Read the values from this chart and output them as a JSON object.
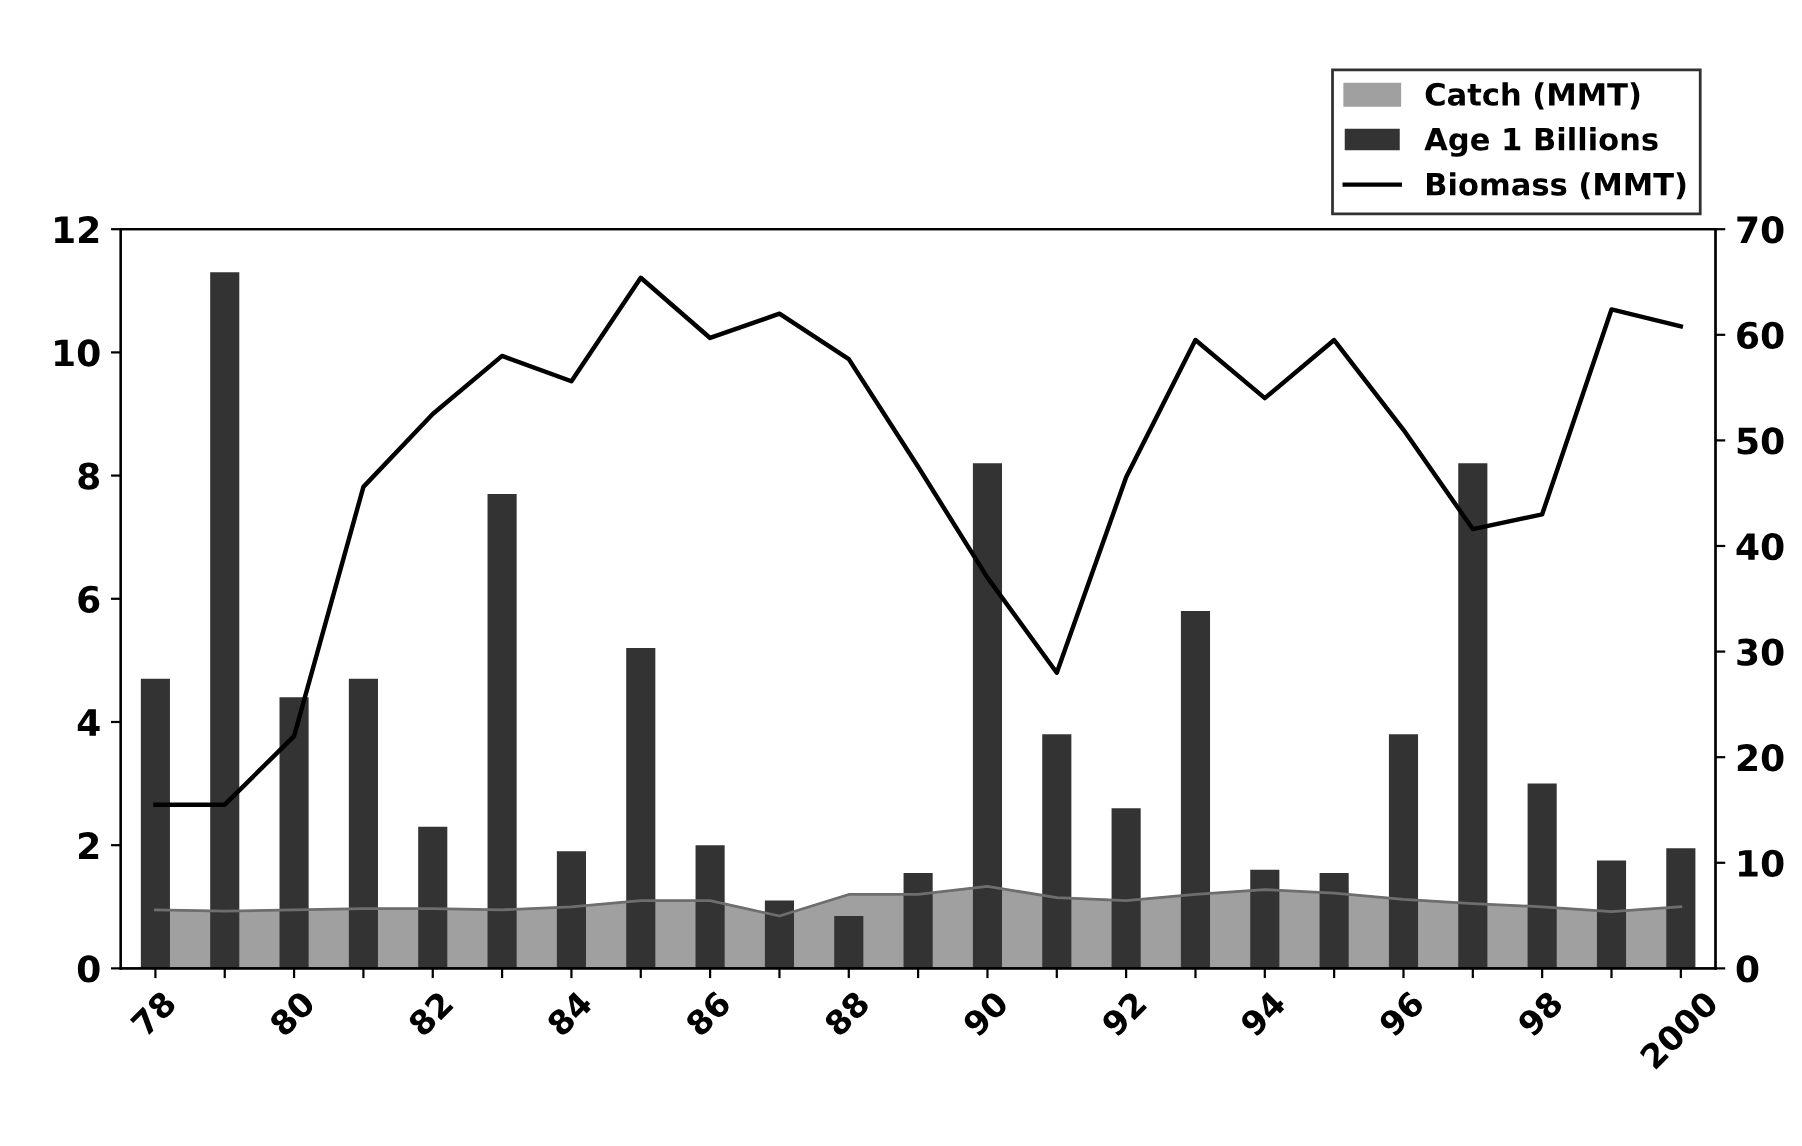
{
  "chart_data": {
    "type": "bar",
    "categories": [
      "78",
      null,
      "80",
      null,
      "82",
      null,
      "84",
      null,
      "86",
      null,
      "88",
      null,
      "90",
      null,
      "92",
      null,
      "94",
      null,
      "96",
      null,
      "98",
      null,
      "2000"
    ],
    "series": [
      {
        "name": "Catch (MMT)",
        "type": "area",
        "color": "#a0a0a0",
        "values": [
          0.95,
          0.93,
          0.95,
          0.97,
          0.97,
          0.95,
          1.0,
          1.1,
          1.1,
          0.85,
          1.2,
          1.2,
          1.33,
          1.15,
          1.1,
          1.2,
          1.28,
          1.22,
          1.12,
          1.05,
          1.0,
          0.92,
          1.0
        ]
      },
      {
        "name": "Age 1 Billions",
        "color": "#333333",
        "values": [
          4.7,
          11.3,
          4.4,
          4.7,
          2.3,
          7.7,
          1.9,
          5.2,
          2.0,
          1.1,
          0.85,
          1.55,
          8.2,
          3.8,
          2.6,
          5.8,
          1.6,
          1.55,
          3.8,
          8.2,
          3.0,
          1.75,
          1.95
        ]
      },
      {
        "name": "Biomass (MMT)",
        "type": "line",
        "axis": "y2",
        "color": "#000000",
        "values": [
          15.5,
          15.5,
          22,
          45.6,
          52.5,
          58,
          55.6,
          65.4,
          59.7,
          62,
          57.7,
          47.5,
          37,
          28,
          46.5,
          59.5,
          54,
          59.5,
          51,
          41.6,
          43,
          62.4,
          60.8
        ]
      }
    ],
    "ylim": [
      0,
      12
    ],
    "yticks": [
      0,
      2,
      4,
      6,
      8,
      10,
      12
    ],
    "y2lim": [
      0,
      70
    ],
    "y2ticks": [
      0,
      10,
      20,
      30,
      40,
      50,
      60,
      70
    ],
    "legend": "top right",
    "grid": false
  }
}
